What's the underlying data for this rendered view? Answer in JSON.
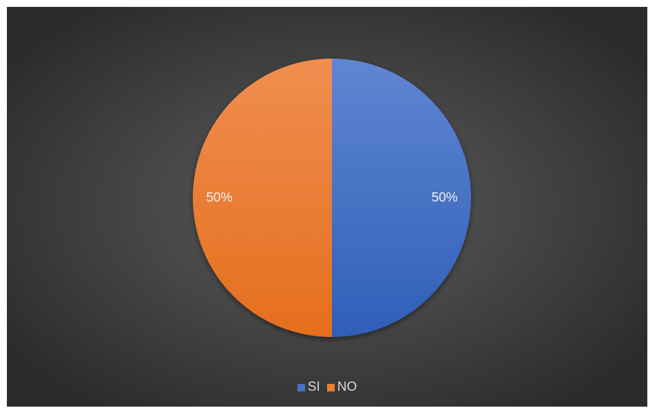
{
  "chart_data": {
    "type": "pie",
    "title": "",
    "categories": [
      "SI",
      "NO"
    ],
    "values": [
      50,
      50
    ],
    "data_labels": [
      "50%",
      "50%"
    ],
    "colors": [
      "#4472c4",
      "#ed7d31"
    ],
    "legend": "bottom",
    "start_angle_deg": 0,
    "direction": "clockwise"
  }
}
